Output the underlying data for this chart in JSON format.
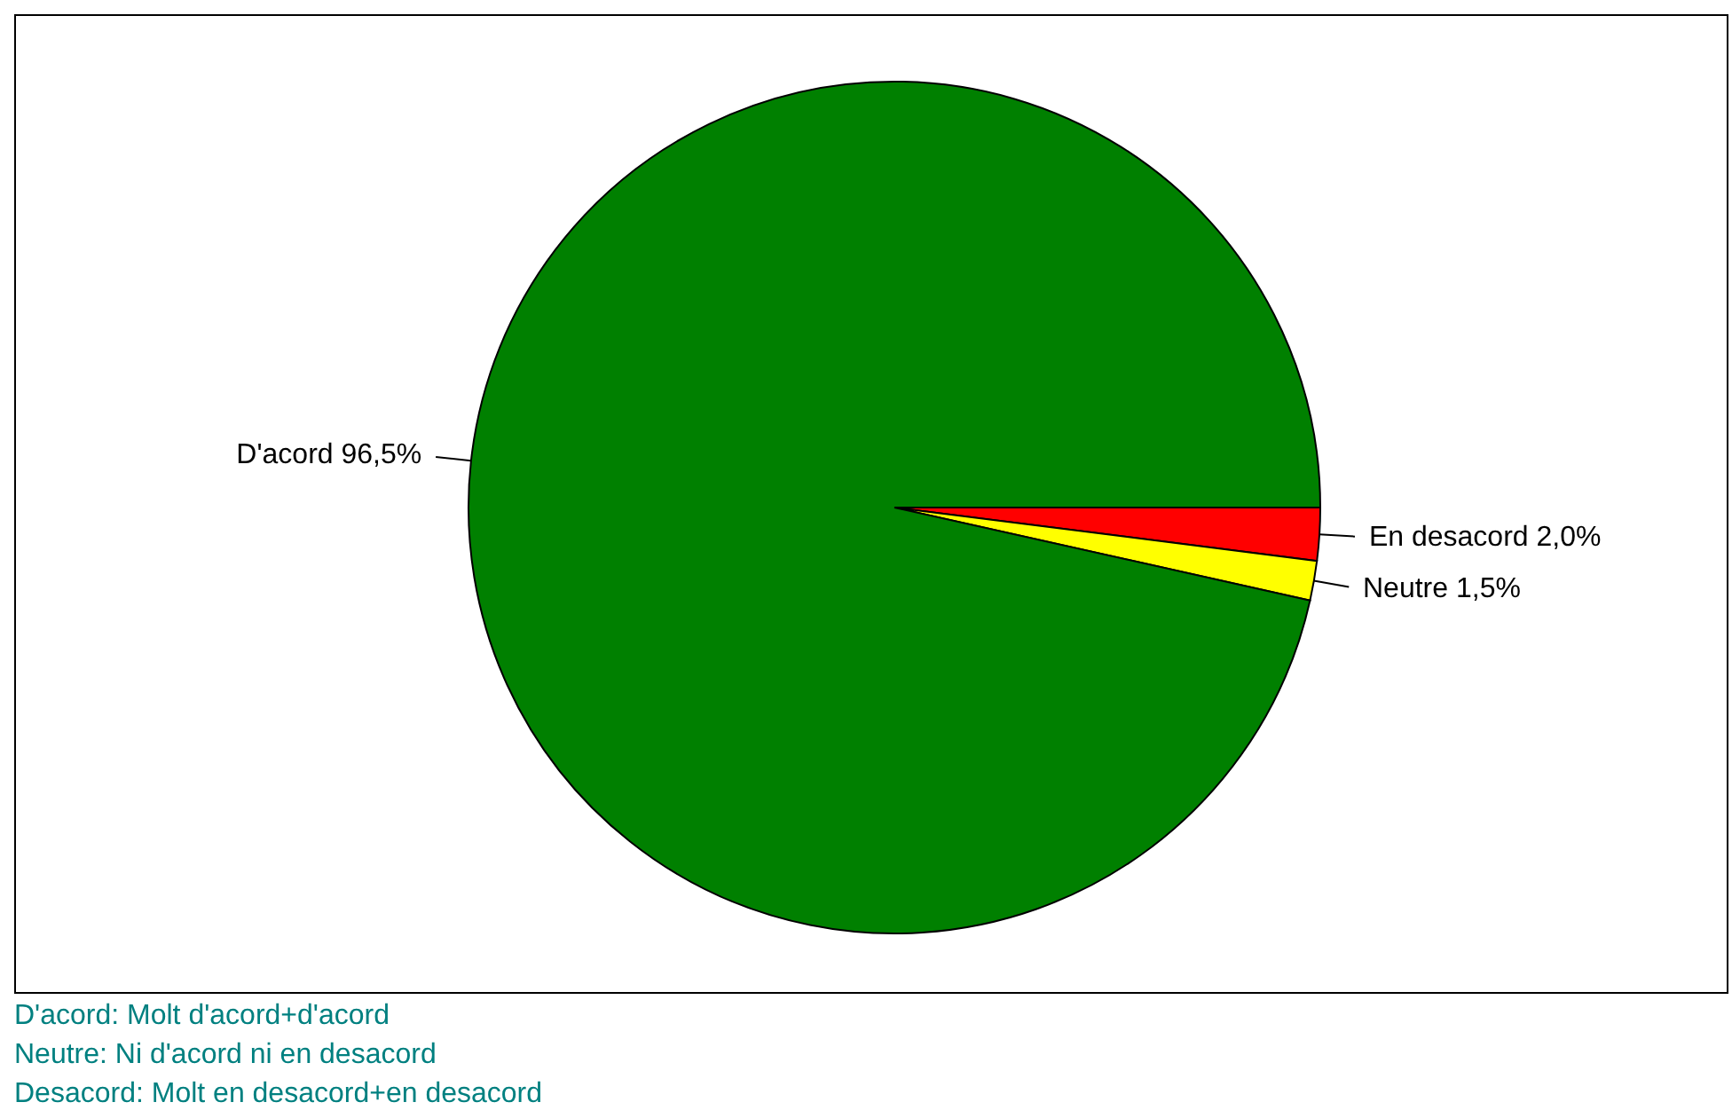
{
  "chart_data": {
    "type": "pie",
    "categories": [
      "En desacord",
      "Neutre",
      "D'acord"
    ],
    "values": [
      2.0,
      1.5,
      96.5
    ],
    "colors": [
      "#ff0000",
      "#ffff00",
      "#008000"
    ],
    "value_labels": [
      "2,0%",
      "1,5%",
      "96,5%"
    ],
    "legend": false,
    "annotations": [
      "D'acord: Molt d'acord+d'acord",
      "Neutre: Ni d'acord ni en desacord",
      "Desacord: Molt en desacord+en desacord"
    ]
  }
}
